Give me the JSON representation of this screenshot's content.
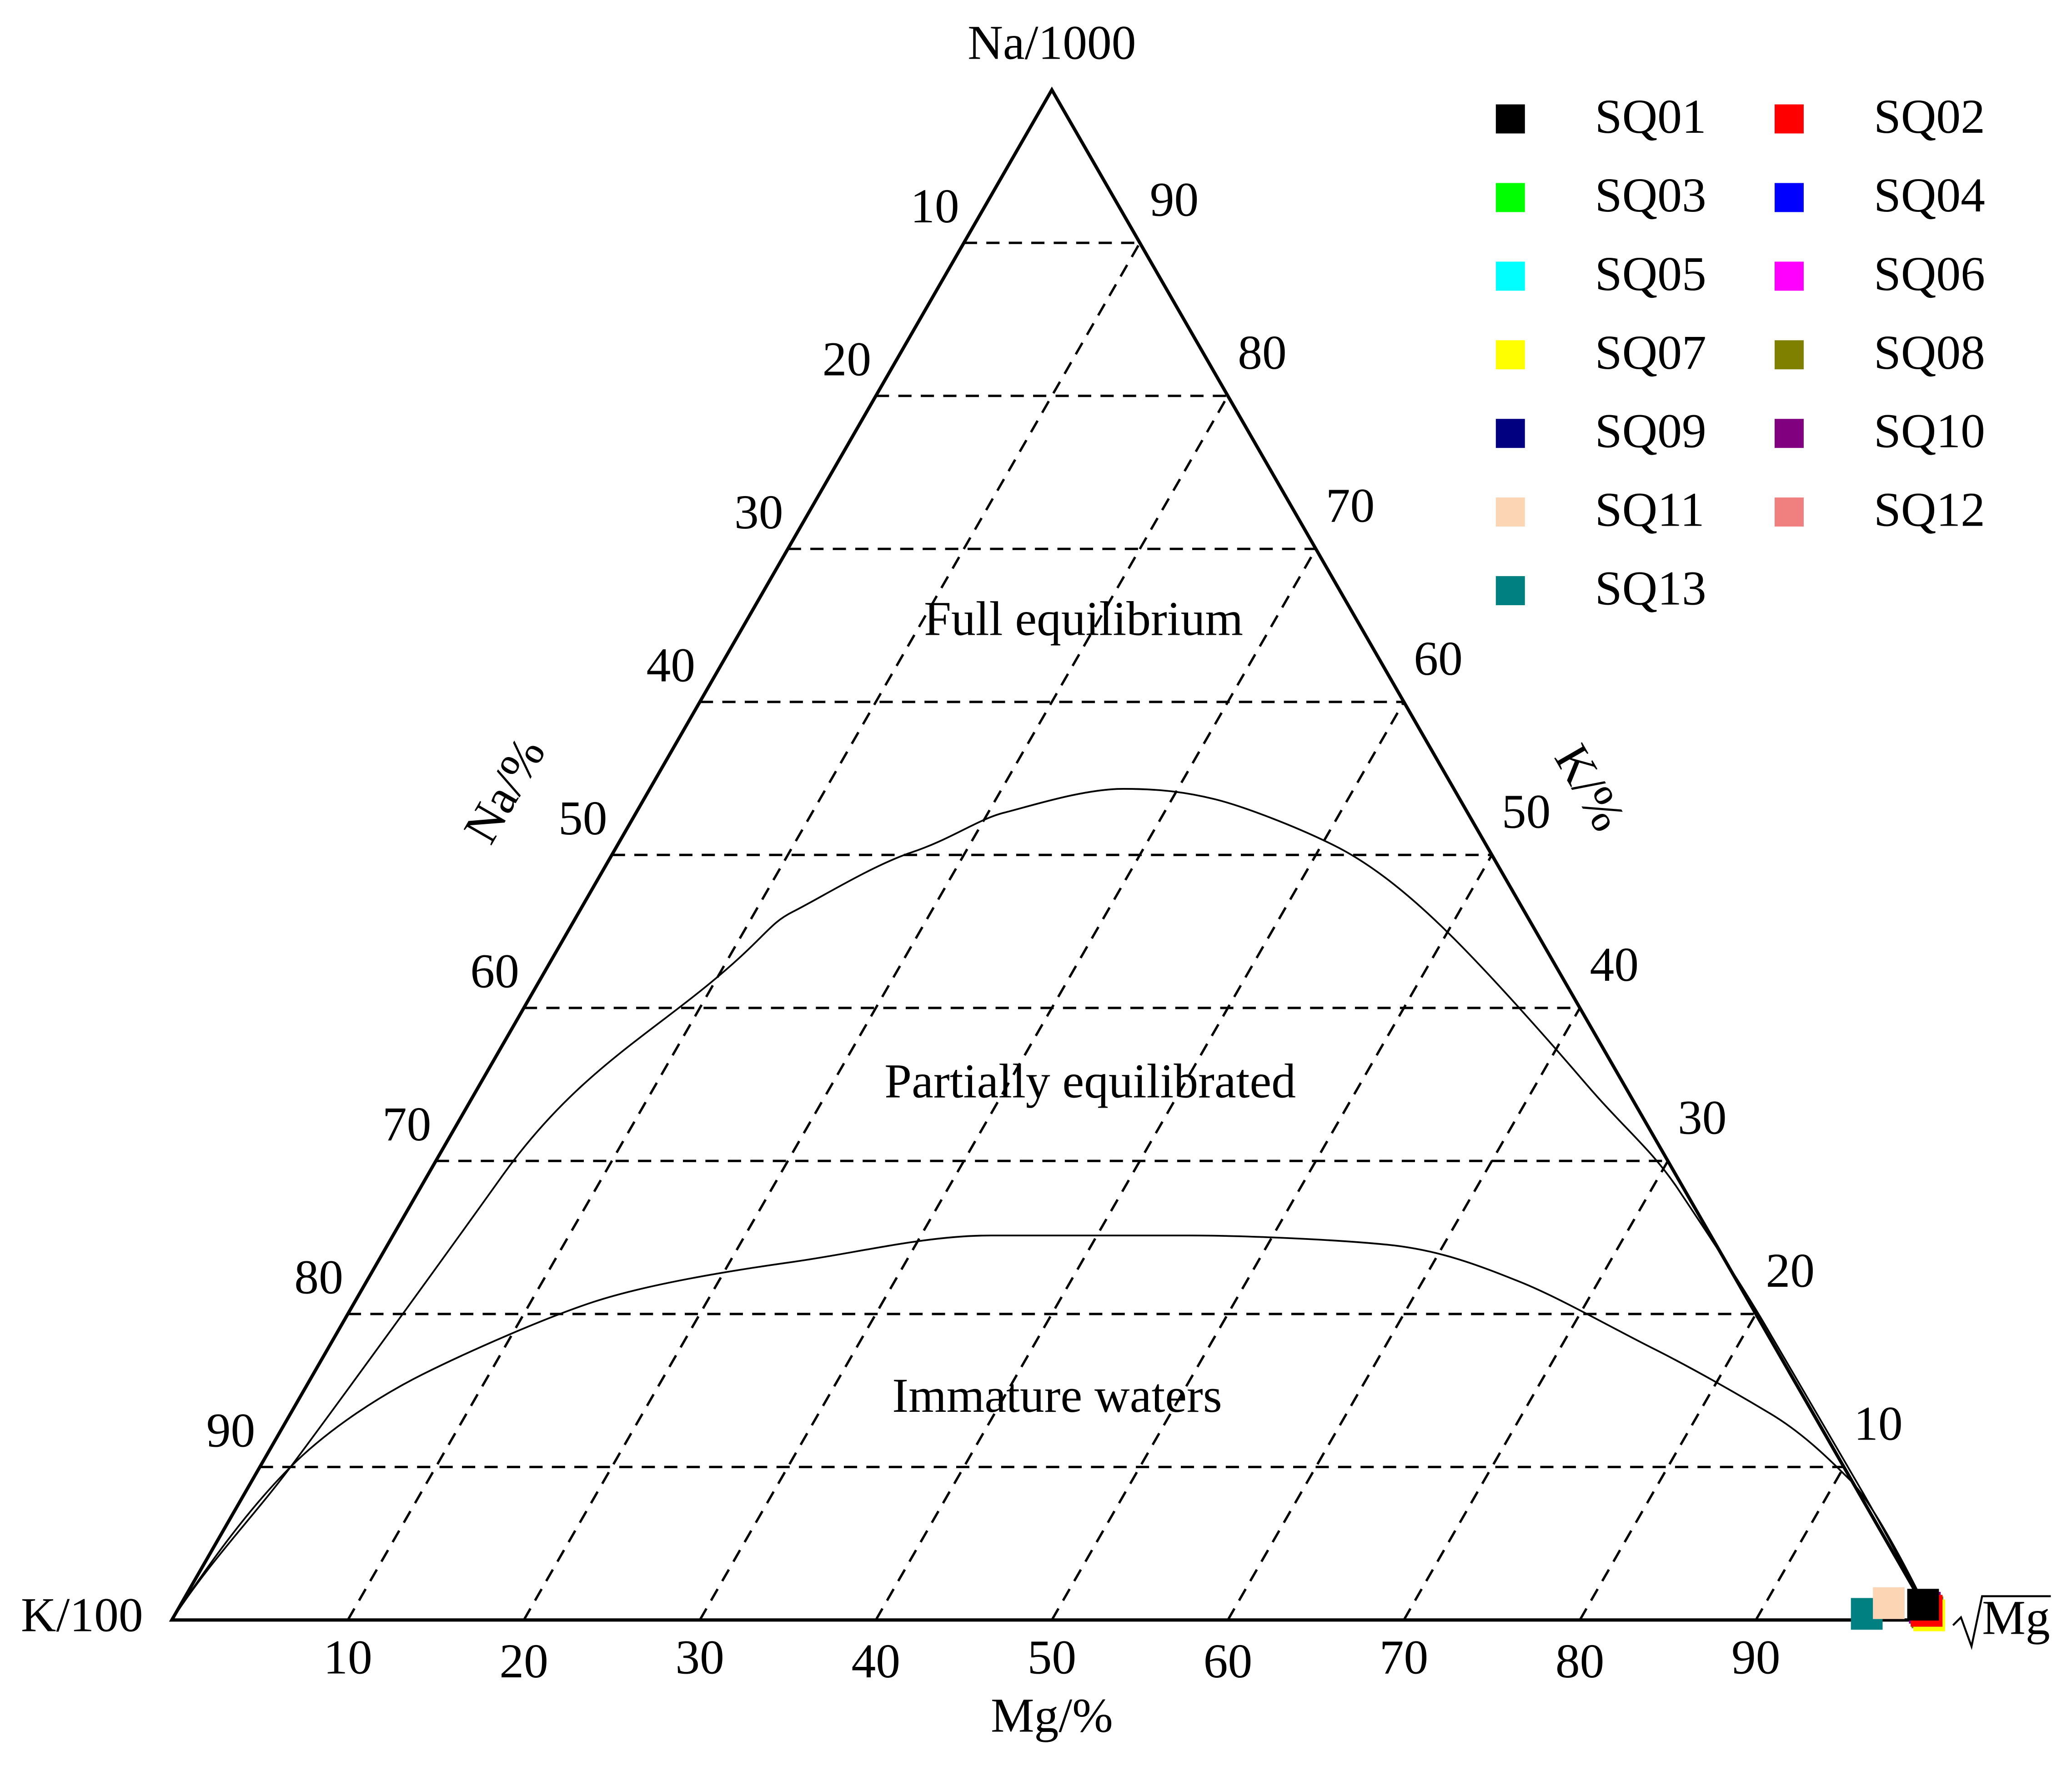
{
  "chart_data": {
    "type": "ternary",
    "top_vertex": "Na/1000",
    "left_vertex": "K/100",
    "right_vertex": "Mg",
    "left_axis": {
      "label": "Na/%",
      "ticks": [
        10,
        20,
        30,
        40,
        50,
        60,
        70,
        80,
        90
      ]
    },
    "right_axis": {
      "label": "K/%",
      "ticks": [
        90,
        80,
        70,
        60,
        50,
        40,
        30,
        20,
        10
      ]
    },
    "bottom_axis": {
      "label": "Mg/%",
      "ticks": [
        10,
        20,
        30,
        40,
        50,
        60,
        70,
        80,
        90
      ]
    },
    "regions": [
      "Full equilibrium",
      "Partially equilibrated",
      "Immature waters"
    ],
    "grid": true,
    "series": [
      {
        "name": "SQ01",
        "color": "#000000",
        "na": 1,
        "k": 0,
        "mg": 99
      },
      {
        "name": "SQ02",
        "color": "#ff0000",
        "na": 0.6,
        "k": 0,
        "mg": 99.4
      },
      {
        "name": "SQ03",
        "color": "#00ff00",
        "na": 0.6,
        "k": 0,
        "mg": 99.4
      },
      {
        "name": "SQ04",
        "color": "#0000ff",
        "na": 0.6,
        "k": 0,
        "mg": 99.4
      },
      {
        "name": "SQ05",
        "color": "#00ffff",
        "na": 0.6,
        "k": 0,
        "mg": 99.4
      },
      {
        "name": "SQ06",
        "color": "#ff00ff",
        "na": 0.6,
        "k": 0,
        "mg": 99.4
      },
      {
        "name": "SQ07",
        "color": "#ffff00",
        "na": 0.3,
        "k": 0,
        "mg": 99.7
      },
      {
        "name": "SQ08",
        "color": "#808000",
        "na": 0.5,
        "k": 0,
        "mg": 99.5
      },
      {
        "name": "SQ09",
        "color": "#000080",
        "na": 0.6,
        "k": 0,
        "mg": 99.4
      },
      {
        "name": "SQ10",
        "color": "#800080",
        "na": 0.8,
        "k": 0,
        "mg": 99.2
      },
      {
        "name": "SQ11",
        "color": "#fcd5b5",
        "na": 1.1,
        "k": 1.9,
        "mg": 97
      },
      {
        "name": "SQ12",
        "color": "#f08080",
        "na": 0.6,
        "k": 0,
        "mg": 99.4
      },
      {
        "name": "SQ13",
        "color": "#008080",
        "na": 0.4,
        "k": 3.5,
        "mg": 96.1
      }
    ]
  }
}
